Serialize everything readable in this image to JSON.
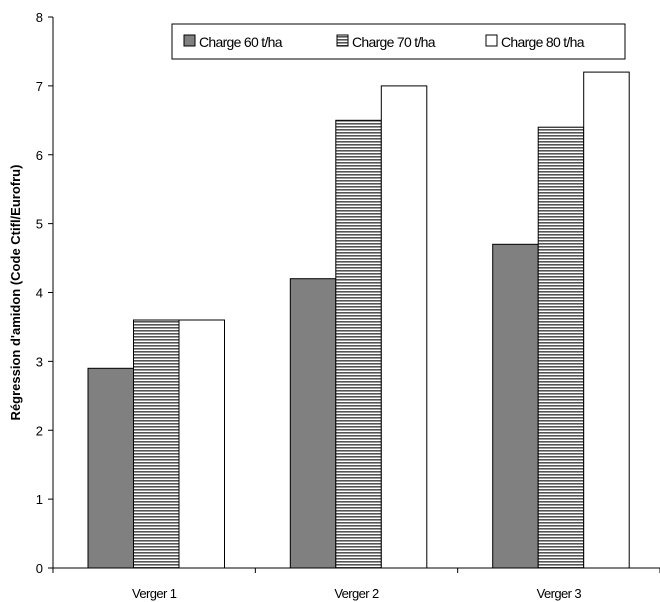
{
  "chart_data": {
    "type": "bar",
    "title": "",
    "xlabel": "",
    "ylabel": "Régression d'amidon (Code Ctifl/Eurofru)",
    "categories": [
      "Verger 1",
      "Verger 2",
      "Verger 3"
    ],
    "series": [
      {
        "name": "Charge 60 t/ha",
        "values": [
          2.9,
          4.2,
          4.7
        ],
        "fill": "#808080",
        "pattern": "solid"
      },
      {
        "name": "Charge 70 t/ha",
        "values": [
          3.6,
          6.5,
          6.4
        ],
        "fill": "#a6a6a6",
        "pattern": "horizontal-stripes"
      },
      {
        "name": "Charge 80 t/ha",
        "values": [
          3.6,
          7.0,
          7.2
        ],
        "fill": "#ffffff",
        "pattern": "none"
      }
    ],
    "ylim": [
      0,
      8
    ],
    "yticks": [
      "0",
      "1",
      "2",
      "3",
      "4",
      "5",
      "6",
      "7",
      "8"
    ],
    "grid": false,
    "legend_position": "top-right",
    "colors": {
      "axis": "#000000",
      "bar_outline": "#000000",
      "background": "#ffffff"
    }
  }
}
